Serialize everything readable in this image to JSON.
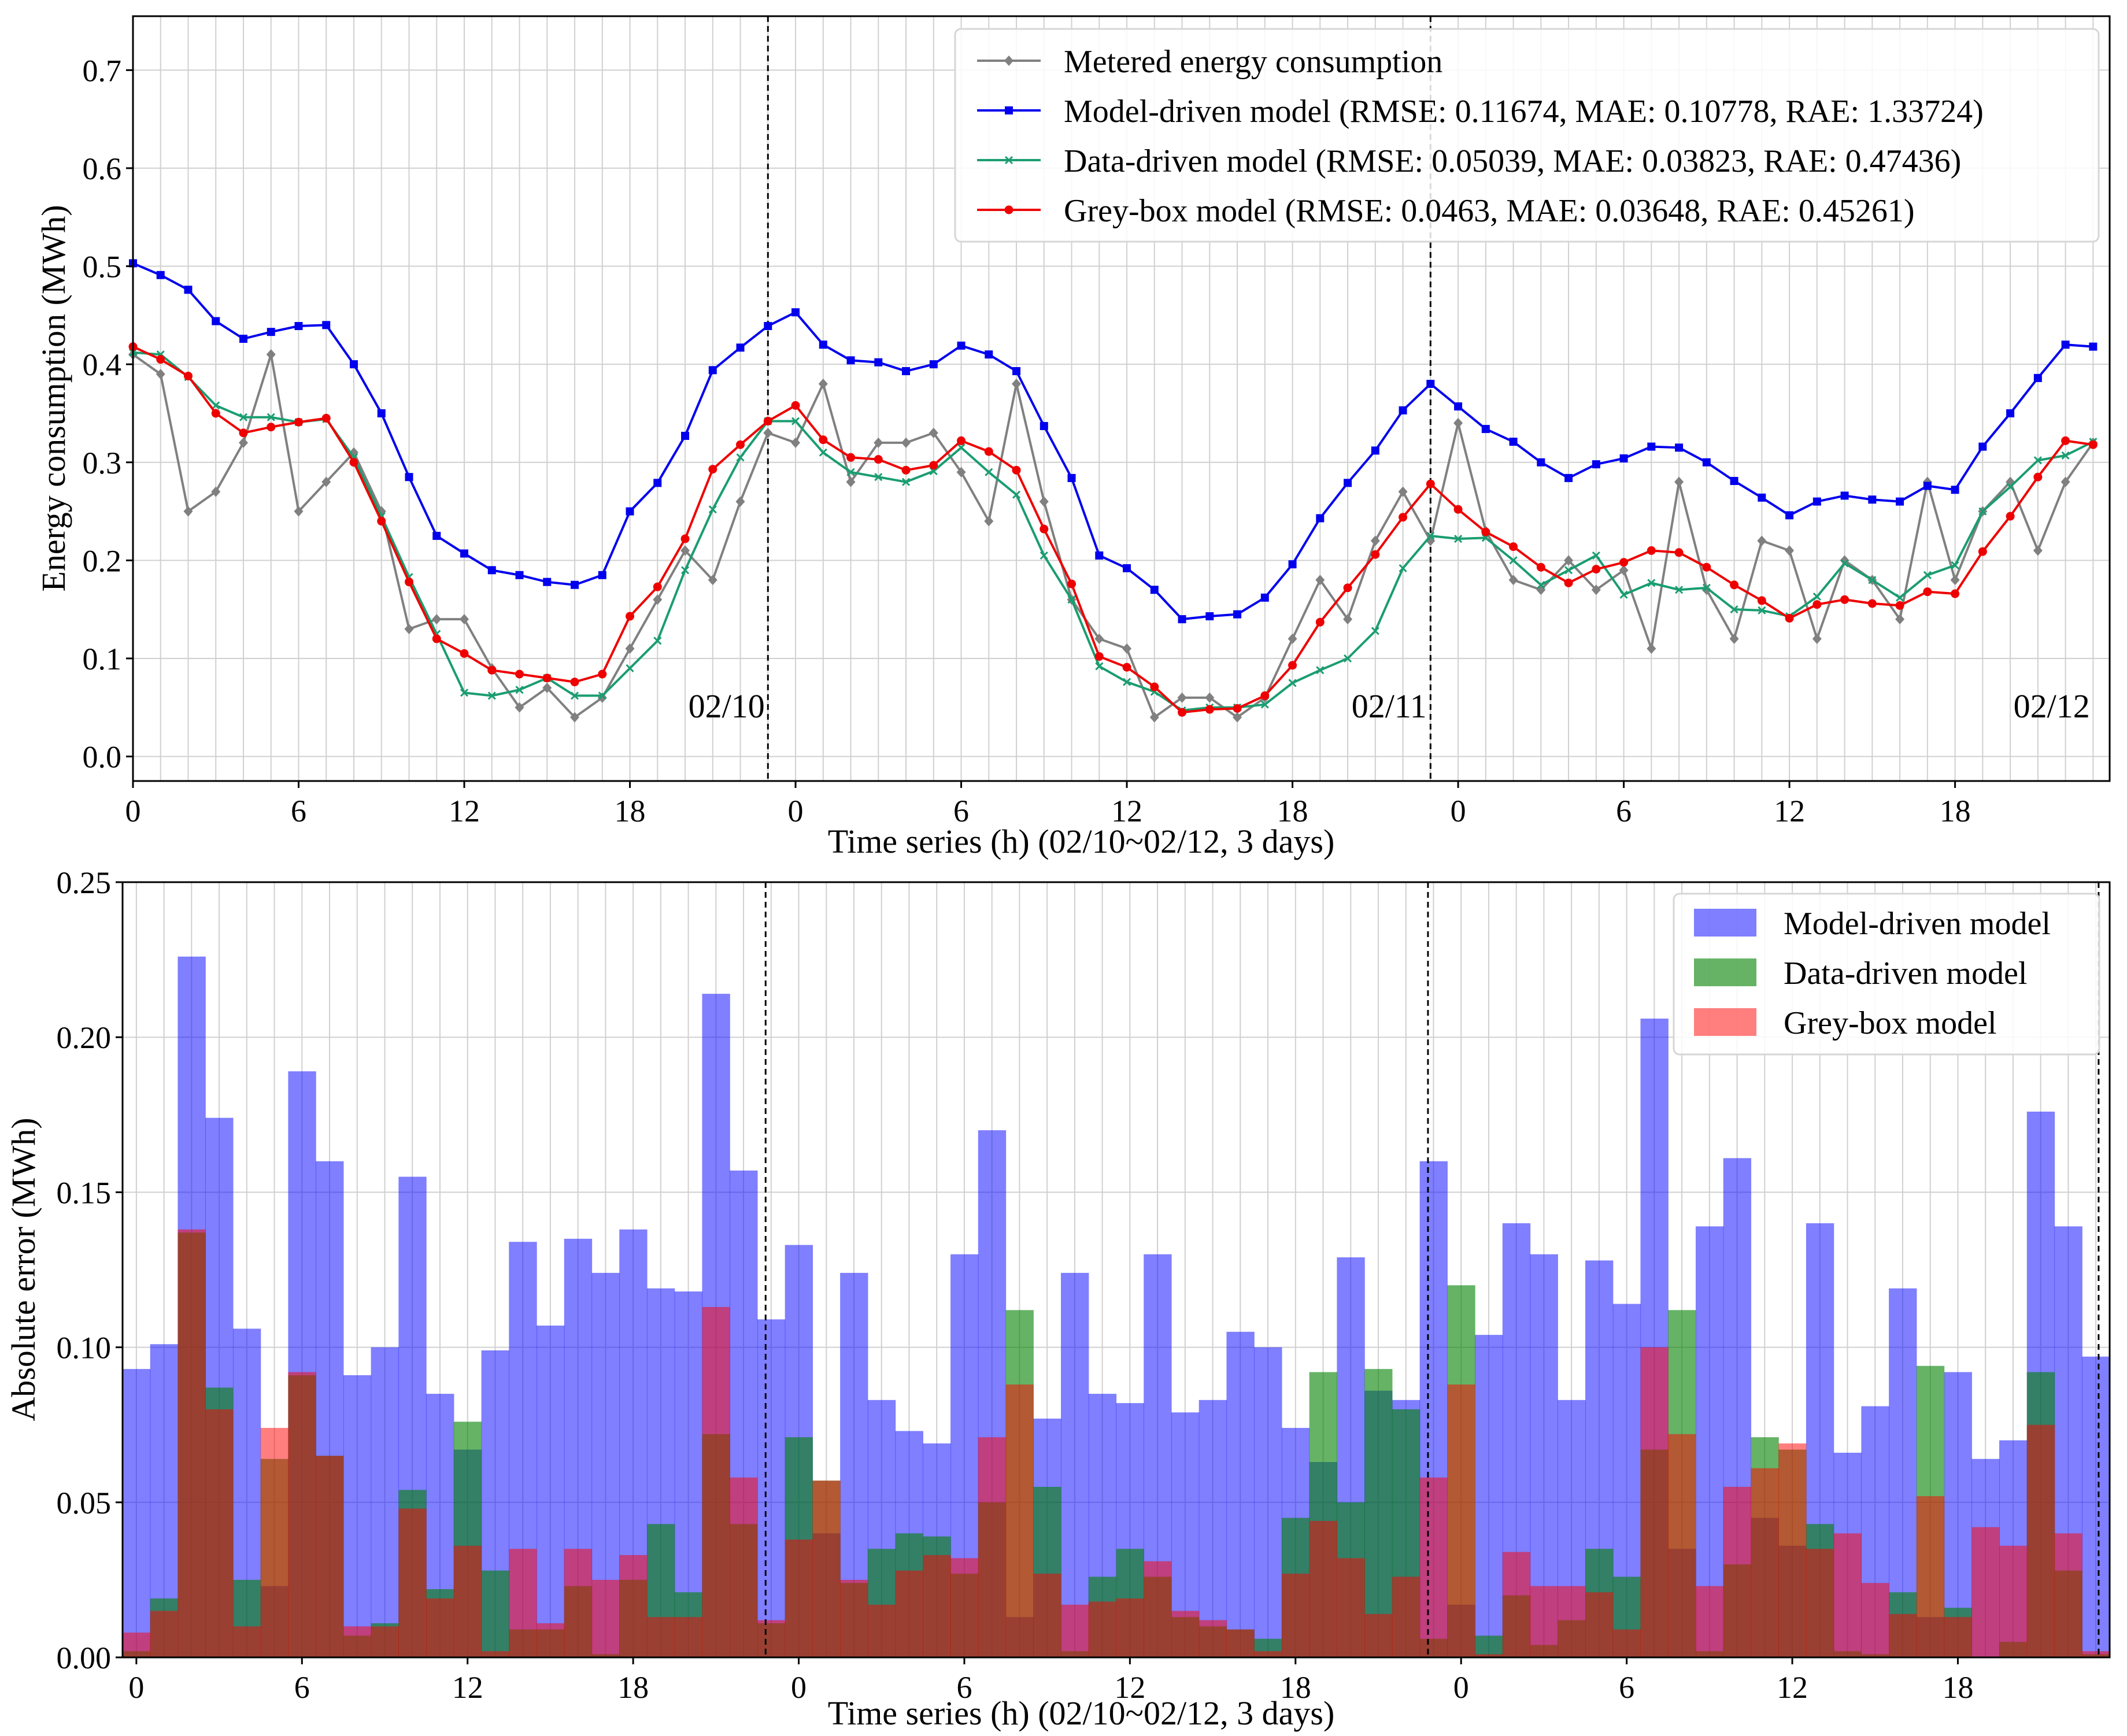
{
  "chart_data": [
    {
      "type": "line",
      "xlabel": "Time series (h) (02/10~02/12,  3 days)",
      "ylabel": "Energy consumption (MWh)",
      "ylim": [
        -0.025,
        0.755
      ],
      "xlim": [
        0,
        71.6
      ],
      "yticks": [
        "0.0",
        "0.1",
        "0.2",
        "0.3",
        "0.4",
        "0.5",
        "0.6",
        "0.7"
      ],
      "ytick_values": [
        0,
        0.1,
        0.2,
        0.3,
        0.4,
        0.5,
        0.6,
        0.7
      ],
      "xticks": [
        "0",
        "6",
        "12",
        "18",
        "0",
        "6",
        "12",
        "18",
        "0",
        "6",
        "12",
        "18"
      ],
      "xtick_values": [
        0,
        6,
        12,
        18,
        24,
        30,
        36,
        42,
        48,
        54,
        60,
        66
      ],
      "day_lines": [
        23,
        47
      ],
      "day_labels": [
        {
          "text": "02/10",
          "x": 21.5,
          "y": 0.04
        },
        {
          "text": "02/11",
          "x": 45.5,
          "y": 0.04
        },
        {
          "text": "02/12",
          "x": 69.5,
          "y": 0.04
        }
      ],
      "grid": true,
      "legend": "top-right",
      "series": [
        {
          "name": "Metered energy consumption",
          "color": "#808080",
          "marker": "diamond",
          "values": [
            0.41,
            0.39,
            0.25,
            0.27,
            0.32,
            0.41,
            0.25,
            0.28,
            0.31,
            0.25,
            0.13,
            0.14,
            0.14,
            0.09,
            0.05,
            0.07,
            0.04,
            0.06,
            0.11,
            0.16,
            0.21,
            0.18,
            0.26,
            0.33,
            0.32,
            0.38,
            0.28,
            0.32,
            0.32,
            0.33,
            0.29,
            0.24,
            0.38,
            0.26,
            0.16,
            0.12,
            0.11,
            0.04,
            0.06,
            0.06,
            0.04,
            0.06,
            0.12,
            0.18,
            0.14,
            0.22,
            0.27,
            0.22,
            0.34,
            0.23,
            0.18,
            0.17,
            0.2,
            0.17,
            0.19,
            0.11,
            0.28,
            0.17,
            0.12,
            0.22,
            0.21,
            0.12,
            0.2,
            0.18,
            0.14,
            0.28,
            0.18,
            0.25,
            0.28,
            0.21,
            0.28,
            0.32
          ]
        },
        {
          "name": "Model-driven model (RMSE: 0.11674, MAE: 0.10778, RAE: 1.33724)",
          "color": "#0000ee",
          "marker": "square",
          "values": [
            0.503,
            0.491,
            0.476,
            0.444,
            0.426,
            0.433,
            0.439,
            0.44,
            0.4,
            0.35,
            0.285,
            0.225,
            0.207,
            0.19,
            0.185,
            0.178,
            0.175,
            0.185,
            0.25,
            0.279,
            0.327,
            0.394,
            0.417,
            0.439,
            0.453,
            0.42,
            0.404,
            0.402,
            0.393,
            0.4,
            0.419,
            0.41,
            0.393,
            0.337,
            0.284,
            0.205,
            0.192,
            0.17,
            0.14,
            0.143,
            0.145,
            0.162,
            0.196,
            0.243,
            0.279,
            0.312,
            0.353,
            0.38,
            0.357,
            0.334,
            0.321,
            0.3,
            0.284,
            0.298,
            0.304,
            0.316,
            0.315,
            0.3,
            0.281,
            0.264,
            0.246,
            0.26,
            0.266,
            0.262,
            0.26,
            0.276,
            0.272,
            0.316,
            0.35,
            0.386,
            0.42,
            0.418
          ]
        },
        {
          "name": "Data-driven model (RMSE: 0.05039, MAE: 0.03823, RAE: 0.47436)",
          "color": "#1a9d70",
          "marker": "x",
          "values": [
            0.412,
            0.41,
            0.387,
            0.358,
            0.346,
            0.346,
            0.341,
            0.344,
            0.305,
            0.245,
            0.183,
            0.125,
            0.065,
            0.062,
            0.068,
            0.08,
            0.062,
            0.062,
            0.09,
            0.118,
            0.19,
            0.252,
            0.305,
            0.342,
            0.342,
            0.31,
            0.29,
            0.285,
            0.28,
            0.291,
            0.315,
            0.29,
            0.267,
            0.205,
            0.16,
            0.092,
            0.076,
            0.066,
            0.047,
            0.05,
            0.05,
            0.053,
            0.075,
            0.088,
            0.1,
            0.128,
            0.192,
            0.225,
            0.222,
            0.223,
            0.2,
            0.175,
            0.19,
            0.205,
            0.165,
            0.177,
            0.17,
            0.172,
            0.15,
            0.149,
            0.143,
            0.163,
            0.197,
            0.18,
            0.162,
            0.185,
            0.195,
            0.25,
            0.275,
            0.302,
            0.307,
            0.321
          ]
        },
        {
          "name": "Grey-box model (RMSE: 0.0463, MAE: 0.03648, RAE: 0.45261)",
          "color": "#ee0000",
          "marker": "circle",
          "values": [
            0.418,
            0.405,
            0.388,
            0.35,
            0.33,
            0.336,
            0.341,
            0.345,
            0.3,
            0.24,
            0.178,
            0.12,
            0.105,
            0.088,
            0.084,
            0.08,
            0.076,
            0.084,
            0.143,
            0.173,
            0.222,
            0.293,
            0.318,
            0.342,
            0.358,
            0.323,
            0.305,
            0.303,
            0.292,
            0.297,
            0.322,
            0.311,
            0.292,
            0.232,
            0.176,
            0.102,
            0.091,
            0.071,
            0.045,
            0.048,
            0.049,
            0.062,
            0.093,
            0.137,
            0.172,
            0.206,
            0.244,
            0.278,
            0.252,
            0.229,
            0.214,
            0.193,
            0.177,
            0.191,
            0.198,
            0.21,
            0.208,
            0.193,
            0.175,
            0.159,
            0.141,
            0.155,
            0.16,
            0.156,
            0.154,
            0.168,
            0.166,
            0.209,
            0.245,
            0.285,
            0.322,
            0.318
          ]
        }
      ]
    },
    {
      "type": "bar",
      "xlabel": "Time series (h) (02/10~02/12,  3 days)",
      "ylabel": "Absolute error (MWh)",
      "ylim": [
        0,
        0.25
      ],
      "xlim": [
        -0.5,
        71.5
      ],
      "yticks": [
        "0.00",
        "0.05",
        "0.10",
        "0.15",
        "0.20",
        "0.25"
      ],
      "ytick_values": [
        0,
        0.05,
        0.1,
        0.15,
        0.2,
        0.25
      ],
      "xticks": [
        "0",
        "6",
        "12",
        "18",
        "0",
        "6",
        "12",
        "18",
        "0",
        "6",
        "12",
        "18"
      ],
      "xtick_values": [
        0,
        6,
        12,
        18,
        24,
        30,
        36,
        42,
        48,
        54,
        60,
        66
      ],
      "day_lines": [
        22.8,
        46.8,
        71.1
      ],
      "grid": true,
      "legend": "top-right",
      "series": [
        {
          "name": "Model-driven model",
          "color": "#0000ff",
          "alpha": 0.5,
          "values": [
            0.093,
            0.101,
            0.226,
            0.174,
            0.106,
            0.023,
            0.189,
            0.16,
            0.091,
            0.1,
            0.155,
            0.085,
            0.067,
            0.099,
            0.134,
            0.107,
            0.135,
            0.124,
            0.138,
            0.119,
            0.118,
            0.214,
            0.157,
            0.109,
            0.133,
            0.04,
            0.124,
            0.083,
            0.073,
            0.069,
            0.13,
            0.17,
            0.013,
            0.077,
            0.124,
            0.085,
            0.082,
            0.13,
            0.079,
            0.083,
            0.105,
            0.1,
            0.074,
            0.063,
            0.129,
            0.086,
            0.083,
            0.16,
            0.017,
            0.104,
            0.14,
            0.13,
            0.083,
            0.128,
            0.114,
            0.206,
            0.035,
            0.139,
            0.161,
            0.045,
            0.036,
            0.14,
            0.066,
            0.081,
            0.119,
            0.013,
            0.092,
            0.064,
            0.07,
            0.176,
            0.139,
            0.097
          ]
        },
        {
          "name": "Data-driven model",
          "color": "#008000",
          "alpha": 0.6,
          "values": [
            0.002,
            0.019,
            0.137,
            0.087,
            0.025,
            0.064,
            0.091,
            0.065,
            0.007,
            0.011,
            0.054,
            0.022,
            0.076,
            0.028,
            0.009,
            0.009,
            0.023,
            0.001,
            0.025,
            0.043,
            0.021,
            0.072,
            0.043,
            0.011,
            0.071,
            0.057,
            0.024,
            0.035,
            0.04,
            0.039,
            0.027,
            0.05,
            0.112,
            0.055,
            0.002,
            0.026,
            0.035,
            0.026,
            0.013,
            0.01,
            0.009,
            0.006,
            0.045,
            0.092,
            0.05,
            0.093,
            0.08,
            0.006,
            0.12,
            0.007,
            0.02,
            0.004,
            0.012,
            0.035,
            0.026,
            0.067,
            0.112,
            0.002,
            0.03,
            0.071,
            0.067,
            0.043,
            0.002,
            0.001,
            0.021,
            0.094,
            0.016,
            0.0,
            0.005,
            0.092,
            0.028,
            0.001
          ]
        },
        {
          "name": "Grey-box model",
          "color": "#ff0000",
          "alpha": 0.5,
          "values": [
            0.008,
            0.015,
            0.138,
            0.08,
            0.01,
            0.074,
            0.092,
            0.065,
            0.01,
            0.01,
            0.048,
            0.019,
            0.036,
            0.002,
            0.035,
            0.011,
            0.035,
            0.025,
            0.033,
            0.013,
            0.013,
            0.113,
            0.058,
            0.012,
            0.038,
            0.057,
            0.025,
            0.017,
            0.028,
            0.033,
            0.032,
            0.071,
            0.088,
            0.027,
            0.017,
            0.018,
            0.019,
            0.031,
            0.015,
            0.012,
            0.009,
            0.002,
            0.027,
            0.044,
            0.032,
            0.014,
            0.026,
            0.058,
            0.088,
            0.001,
            0.034,
            0.023,
            0.023,
            0.021,
            0.009,
            0.1,
            0.072,
            0.023,
            0.055,
            0.061,
            0.069,
            0.035,
            0.04,
            0.024,
            0.014,
            0.052,
            0.013,
            0.042,
            0.036,
            0.075,
            0.04,
            0.002
          ]
        }
      ]
    }
  ]
}
